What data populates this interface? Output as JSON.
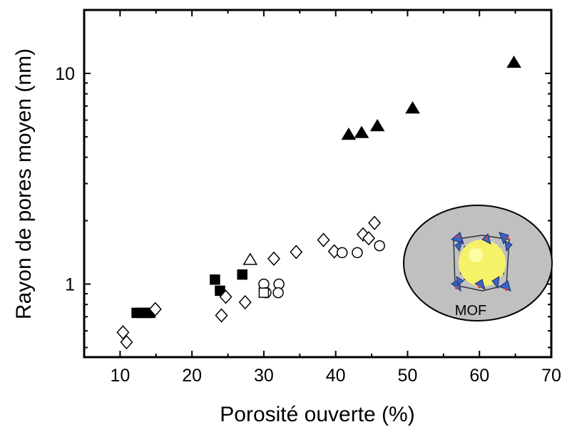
{
  "chart_data": {
    "type": "scatter",
    "xlabel": "Porosité ouverte (%)",
    "ylabel": "Rayon de pores moyen (nm)",
    "xlim": [
      5,
      70
    ],
    "ylim": [
      0.45,
      20
    ],
    "yscale": "log",
    "x_ticks": [
      10,
      20,
      30,
      40,
      50,
      60,
      70
    ],
    "y_ticks": [
      1,
      10
    ],
    "grid": false,
    "series": [
      {
        "marker": "triangle",
        "filled": true,
        "points": [
          [
            41.8,
            5.1
          ],
          [
            43.6,
            5.2
          ],
          [
            45.8,
            5.6
          ],
          [
            50.7,
            6.8
          ],
          [
            64.8,
            11.2
          ]
        ]
      },
      {
        "marker": "square",
        "filled": true,
        "points": [
          [
            12.3,
            0.73
          ],
          [
            13.0,
            0.73
          ],
          [
            13.7,
            0.73
          ],
          [
            14.2,
            0.73
          ],
          [
            23.2,
            1.05
          ],
          [
            23.9,
            0.93
          ],
          [
            27.0,
            1.11
          ]
        ]
      },
      {
        "marker": "diamond",
        "filled": false,
        "points": [
          [
            10.4,
            0.59
          ],
          [
            10.9,
            0.53
          ],
          [
            14.9,
            0.76
          ],
          [
            24.1,
            0.71
          ],
          [
            24.7,
            0.87
          ],
          [
            27.4,
            0.82
          ],
          [
            31.4,
            1.32
          ],
          [
            34.5,
            1.42
          ],
          [
            38.3,
            1.62
          ],
          [
            39.8,
            1.43
          ],
          [
            43.8,
            1.72
          ],
          [
            44.6,
            1.65
          ],
          [
            45.4,
            1.95
          ]
        ]
      },
      {
        "marker": "circle",
        "filled": false,
        "points": [
          [
            30.0,
            1.0
          ],
          [
            30.3,
            0.91
          ],
          [
            32.1,
            1.0
          ],
          [
            32.0,
            0.91
          ],
          [
            40.9,
            1.41
          ],
          [
            43.0,
            1.41
          ],
          [
            46.1,
            1.52
          ]
        ]
      },
      {
        "marker": "square",
        "filled": false,
        "points": [
          [
            30.0,
            0.91
          ]
        ]
      },
      {
        "marker": "triangle",
        "filled": false,
        "points": [
          [
            28.1,
            1.3
          ]
        ]
      }
    ],
    "inset": {
      "label": "MOF",
      "fill": "#c0c0c0",
      "core_color": "#f5f26a"
    },
    "colors": {
      "ink": "#000000",
      "background": "#ffffff"
    }
  }
}
